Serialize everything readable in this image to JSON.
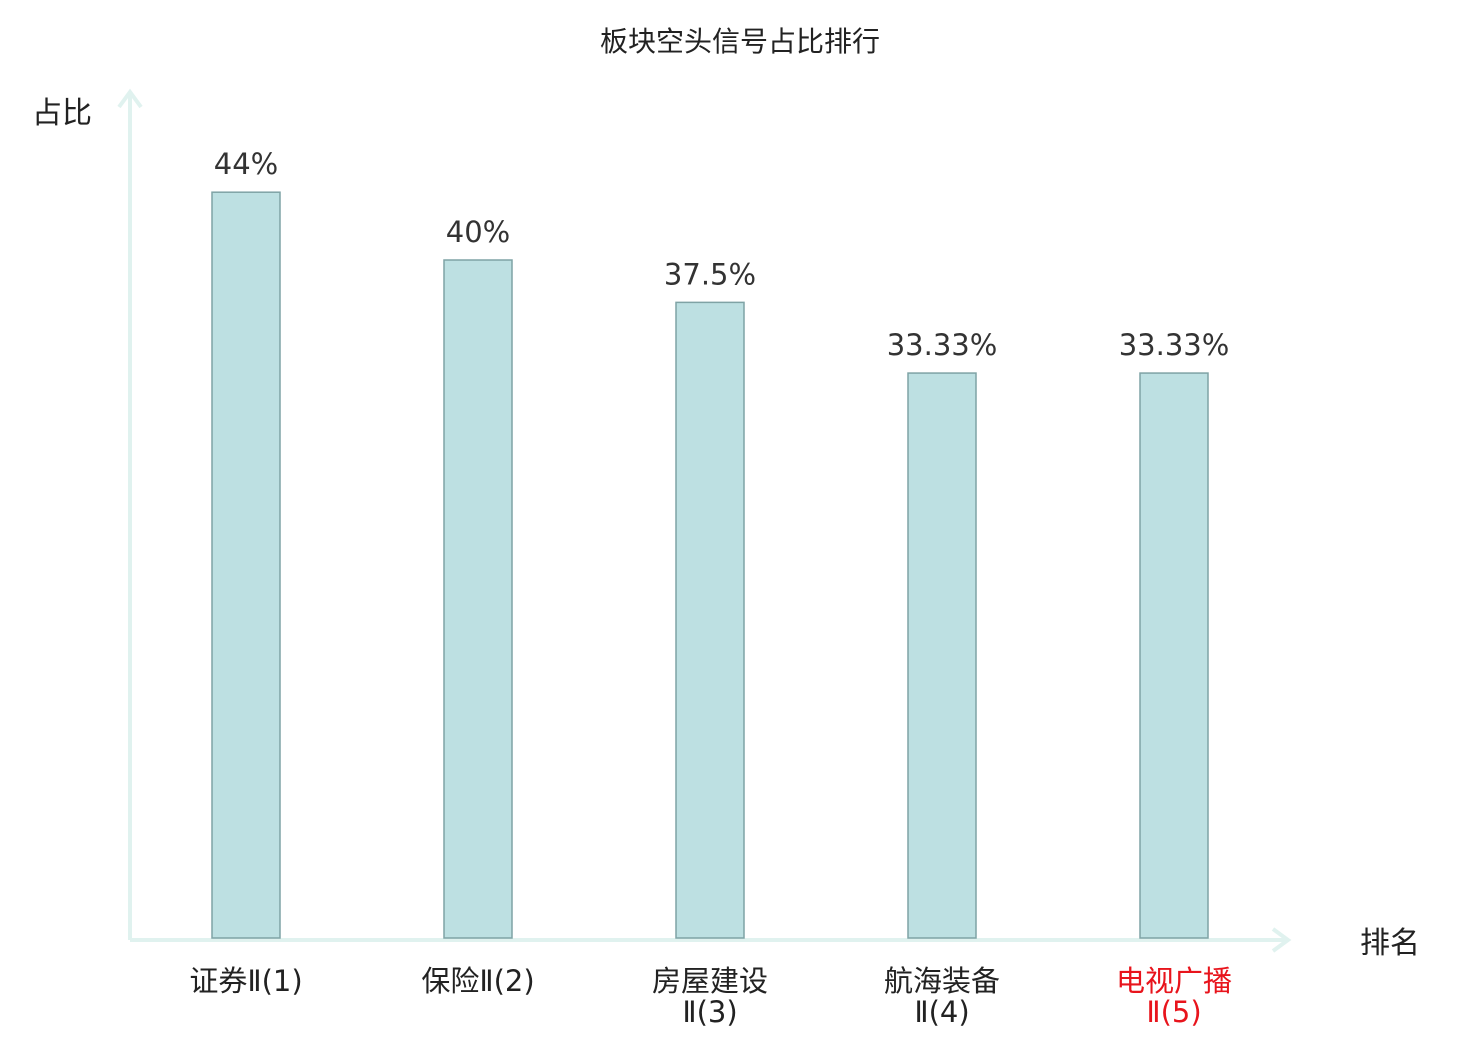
{
  "chart_data": {
    "type": "bar",
    "title": "板块空头信号占比排行",
    "ylabel": "占比",
    "xlabel": "排名",
    "categories": [
      {
        "name": "证券",
        "suffix": "Ⅱ(1)",
        "highlight": false
      },
      {
        "name": "保险",
        "suffix": "Ⅱ(2)",
        "highlight": false
      },
      {
        "name": "房屋建设",
        "suffix": "Ⅱ(3)",
        "highlight": false
      },
      {
        "name": "航海装备",
        "suffix": "Ⅱ(4)",
        "highlight": false
      },
      {
        "name": "电视广播",
        "suffix": "Ⅱ(5)",
        "highlight": true
      }
    ],
    "values": [
      44,
      40,
      37.5,
      33.33,
      33.33
    ],
    "value_labels": [
      "44%",
      "40%",
      "37.5%",
      "33.33%",
      "33.33%"
    ],
    "ylim": [
      0,
      50
    ],
    "grid": false,
    "bar_color": "#bde0e2",
    "bar_border_color": "#7fa3a5",
    "axis_color": "#e0f2ef",
    "highlight_color": "#e8141c"
  }
}
